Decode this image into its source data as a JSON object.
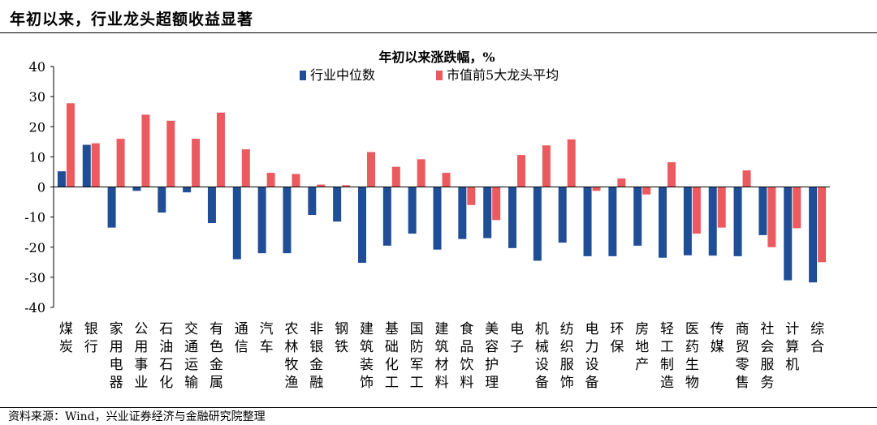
{
  "header": {
    "title": "年初以来，行业龙头超额收益显著"
  },
  "footer": {
    "source": "资料来源：Wind，兴业证券经济与金融研究院整理"
  },
  "colors": {
    "median": "#1F4E96",
    "top5": "#EB5A5F",
    "axis": "#000000"
  },
  "chart_data": {
    "type": "bar",
    "title": "年初以来涨跌幅，%",
    "xlabel": "",
    "ylabel": "",
    "ylim": [
      -40,
      40
    ],
    "yticks": [
      40,
      30,
      20,
      10,
      0,
      -10,
      -20,
      -30,
      -40
    ],
    "grid": false,
    "legend_position": "top-center",
    "categories": [
      "煤炭",
      "银行",
      "家用电器",
      "公用事业",
      "石油石化",
      "交通运输",
      "有色金属",
      "通信",
      "汽车",
      "农林牧渔",
      "非银金融",
      "钢铁",
      "建筑装饰",
      "基础化工",
      "国防军工",
      "建筑材料",
      "食品饮料",
      "美容护理",
      "电子",
      "机械设备",
      "纺织服饰",
      "电力设备",
      "环保",
      "房地产",
      "轻工制造",
      "医药生物",
      "传媒",
      "商贸零售",
      "社会服务",
      "计算机",
      "综合"
    ],
    "series": [
      {
        "name": "行业中位数",
        "values": [
          5.2,
          14.0,
          -13.5,
          -1.3,
          -8.5,
          -1.8,
          -12.0,
          -24.0,
          -22.0,
          -22.0,
          -9.3,
          -11.5,
          -25.2,
          -19.5,
          -15.5,
          -20.8,
          -17.3,
          -17.0,
          -20.3,
          -24.5,
          -18.5,
          -23.0,
          -23.0,
          -19.5,
          -23.5,
          -22.7,
          -22.8,
          -23.0,
          -16.0,
          -31.0,
          -31.7
        ]
      },
      {
        "name": "市值前5大龙头平均",
        "values": [
          27.8,
          14.5,
          16.0,
          24.0,
          22.0,
          16.0,
          24.7,
          12.5,
          4.7,
          4.3,
          0.8,
          0.6,
          11.6,
          6.7,
          9.2,
          4.7,
          -6.0,
          -11.0,
          10.6,
          13.8,
          15.8,
          -1.3,
          2.8,
          -2.5,
          8.2,
          -15.5,
          -13.5,
          5.5,
          -20.0,
          -13.7,
          -25.0
        ]
      }
    ]
  }
}
